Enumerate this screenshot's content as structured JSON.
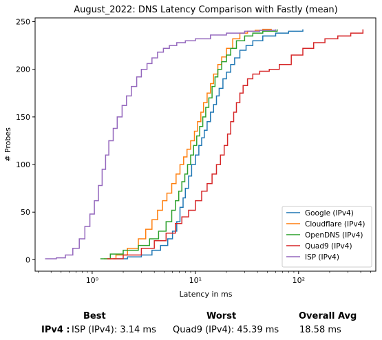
{
  "chart_data": {
    "type": "line",
    "title": "August_2022: DNS Latency Comparison with Fastly (mean)",
    "xlabel": "Latency in ms",
    "ylabel": "# Probes",
    "xscale": "log",
    "xlim": [
      0.28,
      560
    ],
    "ylim": [
      -12,
      254
    ],
    "xticks": [
      {
        "value": 1,
        "label": "10⁰"
      },
      {
        "value": 10,
        "label": "10¹"
      },
      {
        "value": 100,
        "label": "10²"
      }
    ],
    "yticks": [
      0,
      50,
      100,
      150,
      200,
      250
    ],
    "grid": false,
    "legend": "lower-right",
    "series": [
      {
        "name": "Google (IPv4)",
        "color": "#1f77b4",
        "x": [
          1.6,
          2.2,
          3.0,
          3.8,
          4.6,
          5.4,
          6.0,
          6.6,
          7.1,
          7.6,
          8.0,
          8.6,
          9.2,
          10.0,
          10.8,
          11.5,
          12.2,
          13.0,
          14.0,
          15.0,
          16.0,
          17.0,
          18.5,
          20.0,
          22.0,
          24.0,
          27.0,
          31.0,
          36.0,
          45.0,
          60.0,
          80.0,
          110.0
        ],
        "y": [
          1,
          3,
          5,
          10,
          15,
          22,
          30,
          40,
          55,
          65,
          75,
          88,
          100,
          110,
          120,
          128,
          136,
          145,
          155,
          163,
          172,
          180,
          190,
          197,
          205,
          212,
          220,
          225,
          230,
          235,
          238,
          240,
          242
        ]
      },
      {
        "name": "Cloudflare (IPv4)",
        "color": "#ff7f0e",
        "x": [
          1.3,
          1.7,
          2.2,
          2.8,
          3.3,
          3.8,
          4.3,
          4.8,
          5.3,
          5.9,
          6.5,
          7.1,
          7.7,
          8.3,
          9.0,
          9.8,
          10.5,
          11.3,
          12.0,
          13.0,
          14.0,
          15.0,
          16.5,
          18.0,
          20.0,
          23.0,
          27.0,
          32.0,
          38.0,
          45.0,
          55.0
        ],
        "y": [
          1,
          5,
          12,
          22,
          32,
          42,
          52,
          62,
          70,
          80,
          90,
          100,
          108,
          116,
          125,
          135,
          145,
          155,
          165,
          175,
          185,
          195,
          205,
          213,
          222,
          232,
          238,
          240,
          241,
          242,
          242
        ]
      },
      {
        "name": "OpenDNS (IPv4)",
        "color": "#2ca02c",
        "x": [
          1.2,
          1.5,
          2.0,
          2.8,
          3.6,
          4.4,
          5.2,
          5.9,
          6.4,
          6.9,
          7.4,
          7.9,
          8.4,
          9.0,
          9.6,
          10.3,
          11.0,
          11.8,
          12.6,
          13.5,
          14.5,
          15.5,
          16.5,
          18.0,
          20.0,
          22.0,
          25.0,
          30.0,
          36.0,
          45.0,
          62.0
        ],
        "y": [
          1,
          6,
          10,
          15,
          22,
          30,
          40,
          52,
          62,
          72,
          82,
          90,
          100,
          110,
          120,
          130,
          140,
          150,
          160,
          170,
          182,
          192,
          200,
          208,
          215,
          222,
          230,
          235,
          238,
          240,
          242
        ]
      },
      {
        "name": "Quad9 (IPv4)",
        "color": "#d62728",
        "x": [
          1.4,
          2.0,
          3.0,
          4.0,
          5.2,
          6.4,
          7.4,
          8.6,
          10.0,
          11.5,
          13.0,
          14.5,
          16.0,
          17.5,
          19.0,
          20.5,
          22.0,
          23.5,
          25.0,
          27.0,
          29.0,
          32.0,
          36.0,
          42.0,
          52.0,
          65.0,
          85.0,
          110.0,
          140.0,
          180.0,
          240.0,
          320.0,
          420.0
        ],
        "y": [
          1,
          5,
          12,
          20,
          28,
          38,
          45,
          52,
          62,
          72,
          80,
          90,
          100,
          110,
          120,
          132,
          145,
          155,
          165,
          175,
          183,
          190,
          195,
          198,
          200,
          205,
          215,
          222,
          228,
          232,
          235,
          238,
          242
        ]
      },
      {
        "name": "ISP (IPv4)",
        "color": "#9467bd",
        "x": [
          0.35,
          0.45,
          0.55,
          0.65,
          0.75,
          0.85,
          0.95,
          1.05,
          1.15,
          1.25,
          1.35,
          1.45,
          1.6,
          1.75,
          1.95,
          2.15,
          2.4,
          2.7,
          3.0,
          3.4,
          3.8,
          4.3,
          4.9,
          5.6,
          6.6,
          8.0,
          10.0,
          14.0,
          20.0,
          30.0,
          42.0,
          60.0
        ],
        "y": [
          1,
          2,
          5,
          12,
          22,
          35,
          48,
          62,
          78,
          95,
          110,
          125,
          138,
          150,
          162,
          172,
          182,
          192,
          200,
          206,
          212,
          218,
          222,
          225,
          228,
          230,
          232,
          236,
          238,
          240,
          241,
          242
        ]
      }
    ]
  },
  "stats": {
    "best_header": "Best",
    "worst_header": "Worst",
    "avg_header": "Overall Avg",
    "row_label": "IPv4 :",
    "best": "ISP (IPv4): 3.14 ms",
    "worst": "Quad9 (IPv4): 45.39 ms",
    "avg": "18.58 ms"
  }
}
